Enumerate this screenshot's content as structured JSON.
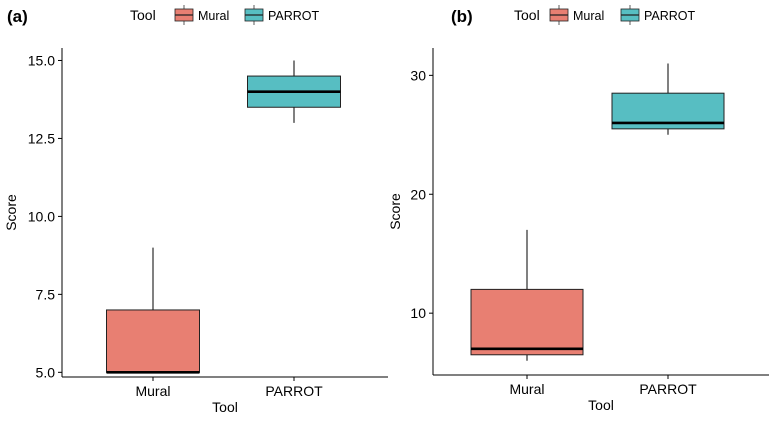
{
  "chart_data": [
    {
      "panel_label": "(a)",
      "type": "boxplot",
      "legend": {
        "title": "Tool",
        "position": "top",
        "entries": [
          {
            "name": "Mural",
            "color": "#E87F72"
          },
          {
            "name": "PARROT",
            "color": "#57BEC2"
          }
        ]
      },
      "xlabel": "Tool",
      "ylabel": "Score",
      "categories": [
        "Mural",
        "PARROT"
      ],
      "ylim": [
        4.85,
        15.4
      ],
      "yticks": [
        5.0,
        7.5,
        10.0,
        12.5,
        15.0
      ],
      "ytick_labels": [
        "5.0",
        "7.5",
        "10.0",
        "12.5",
        "15.0"
      ],
      "boxes": [
        {
          "category": "Mural",
          "min": 5,
          "q1": 5,
          "median": 5,
          "q3": 7,
          "max": 9
        },
        {
          "category": "PARROT",
          "min": 13,
          "q1": 13.5,
          "median": 14,
          "q3": 14.5,
          "max": 15
        }
      ],
      "grid": false
    },
    {
      "panel_label": "(b)",
      "type": "boxplot",
      "legend": {
        "title": "Tool",
        "position": "top",
        "entries": [
          {
            "name": "Mural",
            "color": "#E87F72"
          },
          {
            "name": "PARROT",
            "color": "#57BEC2"
          }
        ]
      },
      "xlabel": "Tool",
      "ylabel": "Score",
      "categories": [
        "Mural",
        "PARROT"
      ],
      "ylim": [
        4.8,
        32.3
      ],
      "yticks": [
        10,
        20,
        30
      ],
      "ytick_labels": [
        "10",
        "20",
        "30"
      ],
      "boxes": [
        {
          "category": "Mural",
          "min": 6,
          "q1": 6.5,
          "median": 7,
          "q3": 12,
          "max": 17
        },
        {
          "category": "PARROT",
          "min": 25,
          "q1": 25.5,
          "median": 26,
          "q3": 28.5,
          "max": 31
        }
      ],
      "grid": false
    }
  ]
}
